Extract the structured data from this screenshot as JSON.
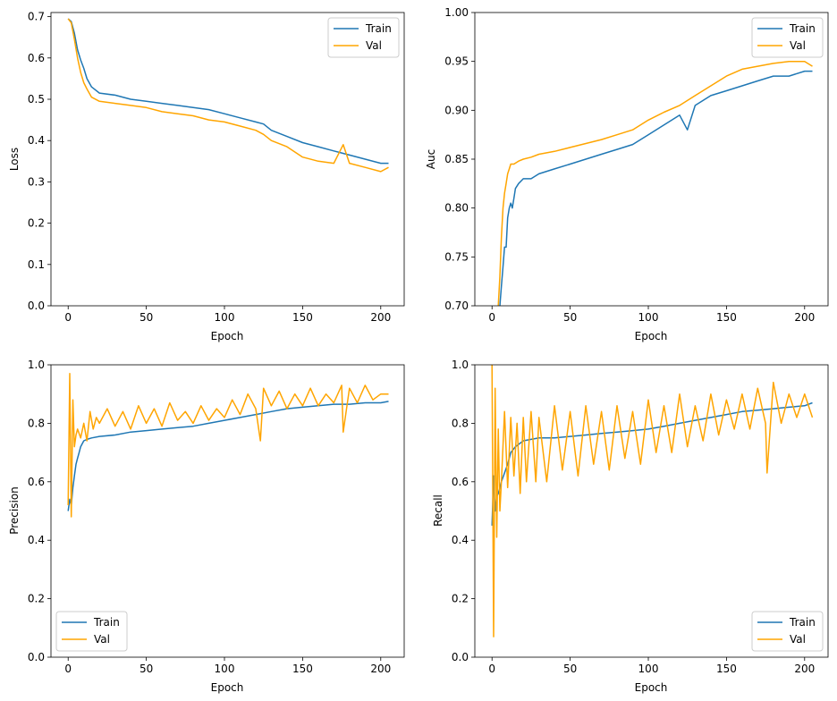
{
  "chart_data": [
    {
      "type": "line",
      "title": "",
      "xlabel": "Epoch",
      "ylabel": "Loss",
      "xlim": [
        -11,
        215
      ],
      "ylim": [
        0.0,
        0.71
      ],
      "xticks": [
        0,
        50,
        100,
        150,
        200
      ],
      "xtick_labels": [
        "0",
        "50",
        "100",
        "150",
        "200"
      ],
      "yticks": [
        0.0,
        0.1,
        0.2,
        0.3,
        0.4,
        0.5,
        0.6,
        0.7
      ],
      "ytick_labels": [
        "0.0",
        "0.1",
        "0.2",
        "0.3",
        "0.4",
        "0.5",
        "0.6",
        "0.7"
      ],
      "legend_position": "upper-right",
      "series": [
        {
          "name": "Train",
          "color": "#1f77b4",
          "x": [
            0,
            2,
            4,
            6,
            8,
            10,
            12,
            15,
            20,
            30,
            40,
            50,
            60,
            70,
            80,
            90,
            100,
            110,
            120,
            125,
            130,
            140,
            150,
            160,
            170,
            180,
            190,
            200,
            205
          ],
          "y": [
            0.695,
            0.688,
            0.66,
            0.62,
            0.595,
            0.575,
            0.55,
            0.53,
            0.515,
            0.51,
            0.5,
            0.495,
            0.49,
            0.485,
            0.48,
            0.475,
            0.465,
            0.455,
            0.445,
            0.44,
            0.425,
            0.41,
            0.395,
            0.385,
            0.375,
            0.365,
            0.355,
            0.345,
            0.345
          ]
        },
        {
          "name": "Val",
          "color": "#ffa500",
          "x": [
            0,
            2,
            4,
            6,
            8,
            10,
            12,
            15,
            20,
            30,
            40,
            50,
            60,
            70,
            80,
            90,
            100,
            110,
            120,
            125,
            130,
            140,
            150,
            160,
            170,
            176,
            180,
            190,
            200,
            205
          ],
          "y": [
            0.695,
            0.685,
            0.645,
            0.6,
            0.565,
            0.54,
            0.525,
            0.505,
            0.495,
            0.49,
            0.485,
            0.48,
            0.47,
            0.465,
            0.46,
            0.45,
            0.445,
            0.435,
            0.425,
            0.415,
            0.4,
            0.385,
            0.36,
            0.35,
            0.345,
            0.39,
            0.345,
            0.335,
            0.325,
            0.335
          ]
        }
      ]
    },
    {
      "type": "line",
      "title": "",
      "xlabel": "Epoch",
      "ylabel": "Auc",
      "xlim": [
        -11,
        215
      ],
      "ylim": [
        0.7,
        1.0
      ],
      "xticks": [
        0,
        50,
        100,
        150,
        200
      ],
      "xtick_labels": [
        "0",
        "50",
        "100",
        "150",
        "200"
      ],
      "yticks": [
        0.7,
        0.75,
        0.8,
        0.85,
        0.9,
        0.95,
        1.0
      ],
      "ytick_labels": [
        "0.70",
        "0.75",
        "0.80",
        "0.85",
        "0.90",
        "0.95",
        "1.00"
      ],
      "legend_position": "upper-right",
      "series": [
        {
          "name": "Train",
          "color": "#1f77b4",
          "x": [
            5,
            6,
            7,
            8,
            9,
            10,
            11,
            12,
            13,
            14,
            15,
            17,
            20,
            25,
            30,
            40,
            50,
            60,
            70,
            80,
            90,
            100,
            110,
            120,
            125,
            130,
            140,
            150,
            160,
            170,
            180,
            190,
            200,
            205
          ],
          "y": [
            0.7,
            0.72,
            0.74,
            0.76,
            0.76,
            0.79,
            0.8,
            0.805,
            0.8,
            0.81,
            0.82,
            0.825,
            0.83,
            0.83,
            0.835,
            0.84,
            0.845,
            0.85,
            0.855,
            0.86,
            0.865,
            0.875,
            0.885,
            0.895,
            0.88,
            0.905,
            0.915,
            0.92,
            0.925,
            0.93,
            0.935,
            0.935,
            0.94,
            0.94
          ]
        },
        {
          "name": "Val",
          "color": "#ffa500",
          "x": [
            4,
            5,
            6,
            7,
            8,
            9,
            10,
            11,
            12,
            14,
            17,
            20,
            25,
            30,
            40,
            50,
            60,
            70,
            80,
            90,
            100,
            110,
            120,
            130,
            140,
            150,
            160,
            170,
            180,
            190,
            200,
            205
          ],
          "y": [
            0.7,
            0.73,
            0.77,
            0.8,
            0.815,
            0.825,
            0.835,
            0.84,
            0.845,
            0.845,
            0.848,
            0.85,
            0.852,
            0.855,
            0.858,
            0.862,
            0.866,
            0.87,
            0.875,
            0.88,
            0.89,
            0.898,
            0.905,
            0.915,
            0.925,
            0.935,
            0.942,
            0.945,
            0.948,
            0.95,
            0.95,
            0.945
          ]
        }
      ]
    },
    {
      "type": "line",
      "title": "",
      "xlabel": "Epoch",
      "ylabel": "Precision",
      "xlim": [
        -11,
        215
      ],
      "ylim": [
        0.0,
        1.0
      ],
      "xticks": [
        0,
        50,
        100,
        150,
        200
      ],
      "xtick_labels": [
        "0",
        "50",
        "100",
        "150",
        "200"
      ],
      "yticks": [
        0.0,
        0.2,
        0.4,
        0.6,
        0.8,
        1.0
      ],
      "ytick_labels": [
        "0.0",
        "0.2",
        "0.4",
        "0.6",
        "0.8",
        "1.0"
      ],
      "legend_position": "lower-left",
      "series": [
        {
          "name": "Train",
          "color": "#1f77b4",
          "x": [
            0,
            1,
            2,
            3,
            4,
            5,
            6,
            7,
            8,
            10,
            12,
            15,
            20,
            30,
            40,
            50,
            60,
            70,
            80,
            90,
            100,
            110,
            120,
            130,
            140,
            150,
            160,
            170,
            180,
            190,
            200,
            205
          ],
          "y": [
            0.5,
            0.54,
            0.52,
            0.58,
            0.62,
            0.66,
            0.68,
            0.7,
            0.72,
            0.74,
            0.745,
            0.75,
            0.755,
            0.76,
            0.77,
            0.775,
            0.78,
            0.785,
            0.79,
            0.8,
            0.81,
            0.82,
            0.83,
            0.84,
            0.85,
            0.855,
            0.86,
            0.865,
            0.865,
            0.87,
            0.87,
            0.875
          ]
        },
        {
          "name": "Val",
          "color": "#ffa500",
          "x": [
            0,
            1,
            2,
            3,
            4,
            5,
            6,
            8,
            10,
            12,
            14,
            16,
            18,
            20,
            25,
            30,
            35,
            40,
            45,
            50,
            55,
            60,
            65,
            70,
            75,
            80,
            85,
            90,
            95,
            100,
            105,
            110,
            115,
            120,
            123,
            125,
            130,
            135,
            140,
            145,
            150,
            155,
            160,
            165,
            170,
            175,
            176,
            180,
            185,
            190,
            195,
            200,
            205
          ],
          "y": [
            0.52,
            0.97,
            0.48,
            0.88,
            0.72,
            0.76,
            0.78,
            0.75,
            0.8,
            0.74,
            0.84,
            0.78,
            0.82,
            0.8,
            0.85,
            0.79,
            0.84,
            0.78,
            0.86,
            0.8,
            0.85,
            0.79,
            0.87,
            0.81,
            0.84,
            0.8,
            0.86,
            0.81,
            0.85,
            0.82,
            0.88,
            0.83,
            0.9,
            0.85,
            0.74,
            0.92,
            0.86,
            0.91,
            0.85,
            0.9,
            0.86,
            0.92,
            0.86,
            0.9,
            0.87,
            0.93,
            0.77,
            0.92,
            0.87,
            0.93,
            0.88,
            0.9,
            0.9
          ]
        }
      ]
    },
    {
      "type": "line",
      "title": "",
      "xlabel": "Epoch",
      "ylabel": "Recall",
      "xlim": [
        -11,
        215
      ],
      "ylim": [
        0.0,
        1.0
      ],
      "xticks": [
        0,
        50,
        100,
        150,
        200
      ],
      "xtick_labels": [
        "0",
        "50",
        "100",
        "150",
        "200"
      ],
      "yticks": [
        0.0,
        0.2,
        0.4,
        0.6,
        0.8,
        1.0
      ],
      "ytick_labels": [
        "0.0",
        "0.2",
        "0.4",
        "0.6",
        "0.8",
        "1.0"
      ],
      "legend_position": "lower-right",
      "series": [
        {
          "name": "Train",
          "color": "#1f77b4",
          "x": [
            0,
            1,
            2,
            3,
            4,
            5,
            6,
            8,
            10,
            12,
            15,
            20,
            30,
            40,
            50,
            60,
            70,
            80,
            90,
            100,
            110,
            120,
            130,
            140,
            150,
            160,
            170,
            180,
            190,
            200,
            205
          ],
          "y": [
            0.45,
            0.62,
            0.5,
            0.55,
            0.56,
            0.58,
            0.6,
            0.63,
            0.66,
            0.7,
            0.72,
            0.74,
            0.75,
            0.75,
            0.755,
            0.76,
            0.765,
            0.77,
            0.775,
            0.78,
            0.79,
            0.8,
            0.81,
            0.82,
            0.83,
            0.84,
            0.845,
            0.85,
            0.855,
            0.86,
            0.87
          ]
        },
        {
          "name": "Val",
          "color": "#ffa500",
          "x": [
            0,
            1,
            2,
            3,
            4,
            5,
            6,
            8,
            10,
            12,
            14,
            16,
            18,
            20,
            22,
            25,
            28,
            30,
            35,
            40,
            45,
            50,
            55,
            60,
            65,
            70,
            75,
            80,
            85,
            90,
            95,
            100,
            105,
            110,
            115,
            120,
            125,
            130,
            135,
            140,
            145,
            150,
            155,
            160,
            165,
            170,
            175,
            176,
            180,
            185,
            190,
            195,
            200,
            205
          ],
          "y": [
            1.0,
            0.07,
            0.92,
            0.41,
            0.78,
            0.5,
            0.6,
            0.84,
            0.58,
            0.82,
            0.62,
            0.8,
            0.56,
            0.82,
            0.6,
            0.84,
            0.6,
            0.82,
            0.6,
            0.86,
            0.64,
            0.84,
            0.62,
            0.86,
            0.66,
            0.84,
            0.64,
            0.86,
            0.68,
            0.84,
            0.66,
            0.88,
            0.7,
            0.86,
            0.7,
            0.9,
            0.72,
            0.86,
            0.74,
            0.9,
            0.76,
            0.88,
            0.78,
            0.9,
            0.78,
            0.92,
            0.8,
            0.63,
            0.94,
            0.8,
            0.9,
            0.82,
            0.9,
            0.82
          ]
        }
      ]
    }
  ]
}
